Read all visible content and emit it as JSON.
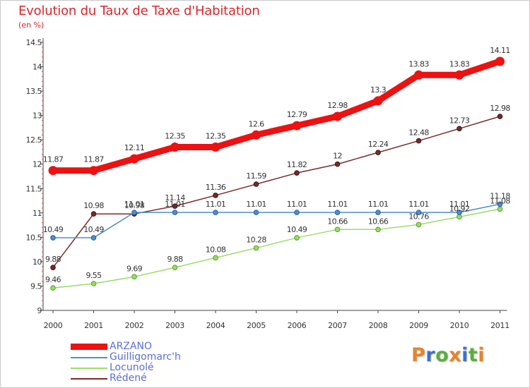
{
  "title": "Evolution du Taux de Taxe d'Habitation",
  "subtitle": "(en %)",
  "logo_text": "Proxiti",
  "logo_colors": [
    "#e8832a",
    "#3c6fd0",
    "#5cae3b",
    "#e8832a",
    "#3c6fd0",
    "#5cae3b",
    "#e8832a"
  ],
  "chart_data": {
    "type": "line",
    "title": "Evolution du Taux de Taxe d'Habitation",
    "ylabel": "(en %)",
    "xlabel": "",
    "x": [
      "2000",
      "2001",
      "2002",
      "2003",
      "2004",
      "2005",
      "2006",
      "2007",
      "2008",
      "2009",
      "2010",
      "2011"
    ],
    "ylim": [
      9,
      14.5
    ],
    "yticks": [
      "9",
      "9.5",
      "10",
      "10.5",
      "11",
      "11.5",
      "12",
      "12.5",
      "13",
      "13.5",
      "14",
      "14.5"
    ],
    "grid": false,
    "legend_position": "bottom-left",
    "series": [
      {
        "name": "ARZANO",
        "color": "#ee1111",
        "values": [
          11.87,
          11.87,
          12.11,
          12.35,
          12.35,
          12.6,
          12.79,
          12.98,
          13.3,
          13.83,
          13.83,
          14.11
        ],
        "labels": [
          "11.87",
          "11.87",
          "12.11",
          "12.35",
          "12.35",
          "12.6",
          "12.79",
          "12.98",
          "13.3",
          "13.83",
          "13.83",
          "14.11"
        ]
      },
      {
        "name": "Guilligomarc'h",
        "color": "#4d8fd0",
        "values": [
          10.49,
          10.49,
          11.01,
          11.01,
          11.01,
          11.01,
          11.01,
          11.01,
          11.01,
          11.01,
          11.01,
          11.18
        ],
        "labels": [
          "10.49",
          "10.49",
          "11.01",
          "11.01",
          "11.01",
          "11.01",
          "11.01",
          "11.01",
          "11.01",
          "11.01",
          "11.01",
          "11.18"
        ]
      },
      {
        "name": "Locunolé",
        "color": "#99dd66",
        "values": [
          9.46,
          9.55,
          9.69,
          9.88,
          10.08,
          10.28,
          10.49,
          10.66,
          10.66,
          10.76,
          10.92,
          11.08
        ],
        "labels": [
          "9.46",
          "9.55",
          "9.69",
          "9.88",
          "10.08",
          "10.28",
          "10.49",
          "10.66",
          "10.66",
          "10.76",
          "10.92",
          "11.08"
        ]
      },
      {
        "name": "Rédené",
        "color": "#7a2b2b",
        "values": [
          9.88,
          10.98,
          10.98,
          11.14,
          11.36,
          11.59,
          11.82,
          12,
          12.24,
          12.48,
          12.73,
          12.98
        ],
        "labels": [
          "9.88",
          "10.98",
          "10.98",
          "11.14",
          "11.36",
          "11.59",
          "11.82",
          "12",
          "12.24",
          "12.48",
          "12.73",
          "12.98"
        ]
      }
    ]
  }
}
